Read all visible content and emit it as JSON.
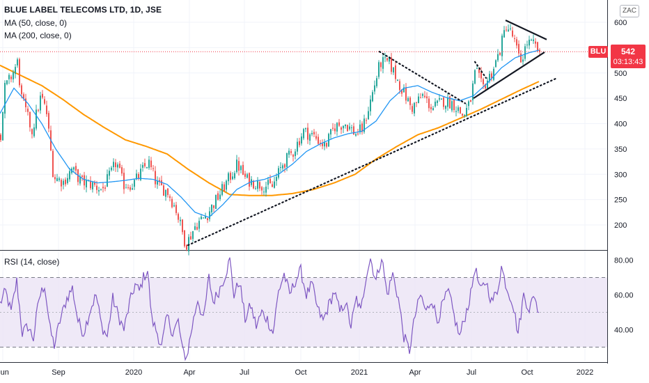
{
  "header": {
    "title": "BLUE LABEL TELECOMS LTD, 1D, JSE",
    "ma50_label": "MA (50, close, 0)",
    "ma200_label": "MA (200, close, 0)",
    "currency": "ZAC"
  },
  "last_price": {
    "symbol": "BLU",
    "value": "542",
    "countdown": "03:13:43"
  },
  "rsi_panel": {
    "label": "RSI (14, close)"
  },
  "colors": {
    "ma50": "#2196f3",
    "ma200": "#ff9800",
    "rsi_line": "#7e57c2",
    "rsi_band": "#ede7f6",
    "up": "#26a69a",
    "down": "#ef5350",
    "price_line": "#f23645",
    "axis_text": "#131722"
  },
  "chart_data": [
    {
      "type": "candlestick",
      "title": "BLUE LABEL TELECOMS LTD, 1D, JSE",
      "x_tick_labels": [
        "Jun",
        "Sep",
        "2020",
        "Apr",
        "Jul",
        "Oct",
        "2021",
        "Apr",
        "Jul",
        "Oct",
        "2022"
      ],
      "y_ticks": [
        200,
        250,
        300,
        350,
        400,
        450,
        500,
        550,
        600
      ],
      "ylim": [
        152,
        633
      ],
      "price_key_points": [
        {
          "x": 0,
          "y": 380
        },
        {
          "x": 6,
          "y": 470
        },
        {
          "x": 14,
          "y": 490
        },
        {
          "x": 24,
          "y": 520
        },
        {
          "x": 30,
          "y": 450
        },
        {
          "x": 45,
          "y": 385
        },
        {
          "x": 58,
          "y": 455
        },
        {
          "x": 66,
          "y": 420
        },
        {
          "x": 76,
          "y": 295
        },
        {
          "x": 90,
          "y": 285
        },
        {
          "x": 102,
          "y": 310
        },
        {
          "x": 116,
          "y": 285
        },
        {
          "x": 130,
          "y": 280
        },
        {
          "x": 146,
          "y": 270
        },
        {
          "x": 158,
          "y": 300
        },
        {
          "x": 166,
          "y": 325
        },
        {
          "x": 176,
          "y": 280
        },
        {
          "x": 190,
          "y": 280
        },
        {
          "x": 200,
          "y": 300
        },
        {
          "x": 212,
          "y": 325
        },
        {
          "x": 224,
          "y": 280
        },
        {
          "x": 240,
          "y": 265
        },
        {
          "x": 252,
          "y": 230
        },
        {
          "x": 266,
          "y": 160
        },
        {
          "x": 280,
          "y": 200
        },
        {
          "x": 296,
          "y": 220
        },
        {
          "x": 312,
          "y": 255
        },
        {
          "x": 325,
          "y": 285
        },
        {
          "x": 340,
          "y": 320
        },
        {
          "x": 352,
          "y": 290
        },
        {
          "x": 372,
          "y": 280
        },
        {
          "x": 390,
          "y": 275
        },
        {
          "x": 405,
          "y": 320
        },
        {
          "x": 420,
          "y": 345
        },
        {
          "x": 435,
          "y": 385
        },
        {
          "x": 450,
          "y": 375
        },
        {
          "x": 466,
          "y": 355
        },
        {
          "x": 480,
          "y": 395
        },
        {
          "x": 495,
          "y": 400
        },
        {
          "x": 510,
          "y": 380
        },
        {
          "x": 520,
          "y": 390
        },
        {
          "x": 532,
          "y": 450
        },
        {
          "x": 545,
          "y": 520
        },
        {
          "x": 558,
          "y": 520
        },
        {
          "x": 572,
          "y": 480
        },
        {
          "x": 590,
          "y": 430
        },
        {
          "x": 606,
          "y": 455
        },
        {
          "x": 620,
          "y": 430
        },
        {
          "x": 636,
          "y": 445
        },
        {
          "x": 650,
          "y": 440
        },
        {
          "x": 664,
          "y": 415
        },
        {
          "x": 674,
          "y": 440
        },
        {
          "x": 682,
          "y": 505
        },
        {
          "x": 692,
          "y": 470
        },
        {
          "x": 705,
          "y": 500
        },
        {
          "x": 716,
          "y": 540
        },
        {
          "x": 726,
          "y": 595
        },
        {
          "x": 736,
          "y": 570
        },
        {
          "x": 746,
          "y": 520
        },
        {
          "x": 756,
          "y": 560
        },
        {
          "x": 766,
          "y": 555
        },
        {
          "x": 774,
          "y": 542
        }
      ],
      "ma50_key_points": [
        {
          "x": 0,
          "y": 420
        },
        {
          "x": 20,
          "y": 470
        },
        {
          "x": 40,
          "y": 440
        },
        {
          "x": 60,
          "y": 400
        },
        {
          "x": 80,
          "y": 350
        },
        {
          "x": 100,
          "y": 310
        },
        {
          "x": 120,
          "y": 290
        },
        {
          "x": 140,
          "y": 283
        },
        {
          "x": 160,
          "y": 285
        },
        {
          "x": 180,
          "y": 288
        },
        {
          "x": 200,
          "y": 292
        },
        {
          "x": 220,
          "y": 290
        },
        {
          "x": 240,
          "y": 280
        },
        {
          "x": 260,
          "y": 255
        },
        {
          "x": 280,
          "y": 225
        },
        {
          "x": 300,
          "y": 215
        },
        {
          "x": 320,
          "y": 240
        },
        {
          "x": 340,
          "y": 270
        },
        {
          "x": 360,
          "y": 285
        },
        {
          "x": 380,
          "y": 290
        },
        {
          "x": 400,
          "y": 300
        },
        {
          "x": 420,
          "y": 320
        },
        {
          "x": 440,
          "y": 345
        },
        {
          "x": 460,
          "y": 360
        },
        {
          "x": 480,
          "y": 372
        },
        {
          "x": 500,
          "y": 380
        },
        {
          "x": 520,
          "y": 385
        },
        {
          "x": 540,
          "y": 405
        },
        {
          "x": 560,
          "y": 445
        },
        {
          "x": 580,
          "y": 470
        },
        {
          "x": 600,
          "y": 475
        },
        {
          "x": 620,
          "y": 462
        },
        {
          "x": 640,
          "y": 452
        },
        {
          "x": 660,
          "y": 445
        },
        {
          "x": 680,
          "y": 455
        },
        {
          "x": 700,
          "y": 480
        },
        {
          "x": 720,
          "y": 510
        },
        {
          "x": 740,
          "y": 530
        },
        {
          "x": 760,
          "y": 540
        },
        {
          "x": 774,
          "y": 545
        }
      ],
      "ma200_key_points": [
        {
          "x": 0,
          "y": 515
        },
        {
          "x": 30,
          "y": 495
        },
        {
          "x": 60,
          "y": 475
        },
        {
          "x": 90,
          "y": 448
        },
        {
          "x": 120,
          "y": 418
        },
        {
          "x": 150,
          "y": 392
        },
        {
          "x": 180,
          "y": 368
        },
        {
          "x": 210,
          "y": 355
        },
        {
          "x": 240,
          "y": 340
        },
        {
          "x": 270,
          "y": 310
        },
        {
          "x": 300,
          "y": 283
        },
        {
          "x": 330,
          "y": 260
        },
        {
          "x": 360,
          "y": 258
        },
        {
          "x": 390,
          "y": 258
        },
        {
          "x": 420,
          "y": 262
        },
        {
          "x": 450,
          "y": 270
        },
        {
          "x": 480,
          "y": 283
        },
        {
          "x": 510,
          "y": 300
        },
        {
          "x": 540,
          "y": 330
        },
        {
          "x": 570,
          "y": 355
        },
        {
          "x": 600,
          "y": 378
        },
        {
          "x": 630,
          "y": 392
        },
        {
          "x": 660,
          "y": 410
        },
        {
          "x": 690,
          "y": 428
        },
        {
          "x": 720,
          "y": 448
        },
        {
          "x": 750,
          "y": 468
        },
        {
          "x": 774,
          "y": 483
        }
      ],
      "last_price": 542,
      "drawings": [
        {
          "kind": "dotted-trend",
          "from": {
            "x": 270,
            "y": 160
          },
          "to": {
            "x": 800,
            "y": 490
          }
        },
        {
          "kind": "dotted-trend",
          "from": {
            "x": 545,
            "y": 542
          },
          "to": {
            "x": 668,
            "y": 440
          }
        },
        {
          "kind": "dotted-trend",
          "from": {
            "x": 682,
            "y": 522
          },
          "to": {
            "x": 698,
            "y": 490
          }
        },
        {
          "kind": "solid-trend",
          "from": {
            "x": 680,
            "y": 450
          },
          "to": {
            "x": 782,
            "y": 541
          }
        },
        {
          "kind": "solid-trend",
          "from": {
            "x": 726,
            "y": 604
          },
          "to": {
            "x": 785,
            "y": 566
          }
        }
      ]
    },
    {
      "type": "line",
      "title": "RSI (14, close)",
      "y_ticks": [
        "40.00",
        "60.00",
        "80.00"
      ],
      "ylim": [
        20,
        84
      ],
      "band": [
        30,
        70
      ],
      "midline": 50,
      "rsi_key_points": [
        {
          "x": 0,
          "y": 55
        },
        {
          "x": 8,
          "y": 62
        },
        {
          "x": 16,
          "y": 50
        },
        {
          "x": 24,
          "y": 68
        },
        {
          "x": 32,
          "y": 38
        },
        {
          "x": 40,
          "y": 42
        },
        {
          "x": 48,
          "y": 35
        },
        {
          "x": 56,
          "y": 58
        },
        {
          "x": 64,
          "y": 66
        },
        {
          "x": 72,
          "y": 40
        },
        {
          "x": 78,
          "y": 31
        },
        {
          "x": 86,
          "y": 45
        },
        {
          "x": 96,
          "y": 58
        },
        {
          "x": 104,
          "y": 64
        },
        {
          "x": 112,
          "y": 45
        },
        {
          "x": 120,
          "y": 38
        },
        {
          "x": 130,
          "y": 52
        },
        {
          "x": 138,
          "y": 60
        },
        {
          "x": 146,
          "y": 42
        },
        {
          "x": 154,
          "y": 36
        },
        {
          "x": 162,
          "y": 58
        },
        {
          "x": 170,
          "y": 48
        },
        {
          "x": 178,
          "y": 40
        },
        {
          "x": 186,
          "y": 55
        },
        {
          "x": 194,
          "y": 66
        },
        {
          "x": 200,
          "y": 62
        },
        {
          "x": 206,
          "y": 70
        },
        {
          "x": 212,
          "y": 74
        },
        {
          "x": 218,
          "y": 46
        },
        {
          "x": 226,
          "y": 38
        },
        {
          "x": 232,
          "y": 30
        },
        {
          "x": 240,
          "y": 48
        },
        {
          "x": 248,
          "y": 38
        },
        {
          "x": 256,
          "y": 45
        },
        {
          "x": 262,
          "y": 28
        },
        {
          "x": 268,
          "y": 24
        },
        {
          "x": 276,
          "y": 42
        },
        {
          "x": 284,
          "y": 58
        },
        {
          "x": 292,
          "y": 45
        },
        {
          "x": 300,
          "y": 70
        },
        {
          "x": 306,
          "y": 56
        },
        {
          "x": 314,
          "y": 62
        },
        {
          "x": 322,
          "y": 70
        },
        {
          "x": 330,
          "y": 80
        },
        {
          "x": 336,
          "y": 60
        },
        {
          "x": 344,
          "y": 68
        },
        {
          "x": 352,
          "y": 46
        },
        {
          "x": 360,
          "y": 54
        },
        {
          "x": 368,
          "y": 42
        },
        {
          "x": 376,
          "y": 50
        },
        {
          "x": 384,
          "y": 46
        },
        {
          "x": 392,
          "y": 38
        },
        {
          "x": 400,
          "y": 62
        },
        {
          "x": 408,
          "y": 72
        },
        {
          "x": 416,
          "y": 60
        },
        {
          "x": 424,
          "y": 68
        },
        {
          "x": 432,
          "y": 74
        },
        {
          "x": 440,
          "y": 60
        },
        {
          "x": 448,
          "y": 66
        },
        {
          "x": 456,
          "y": 52
        },
        {
          "x": 464,
          "y": 45
        },
        {
          "x": 472,
          "y": 54
        },
        {
          "x": 480,
          "y": 62
        },
        {
          "x": 488,
          "y": 50
        },
        {
          "x": 496,
          "y": 56
        },
        {
          "x": 504,
          "y": 42
        },
        {
          "x": 512,
          "y": 58
        },
        {
          "x": 518,
          "y": 50
        },
        {
          "x": 526,
          "y": 72
        },
        {
          "x": 532,
          "y": 81
        },
        {
          "x": 540,
          "y": 68
        },
        {
          "x": 548,
          "y": 82
        },
        {
          "x": 556,
          "y": 60
        },
        {
          "x": 564,
          "y": 72
        },
        {
          "x": 572,
          "y": 58
        },
        {
          "x": 580,
          "y": 36
        },
        {
          "x": 588,
          "y": 28
        },
        {
          "x": 596,
          "y": 48
        },
        {
          "x": 604,
          "y": 60
        },
        {
          "x": 612,
          "y": 50
        },
        {
          "x": 620,
          "y": 58
        },
        {
          "x": 628,
          "y": 45
        },
        {
          "x": 636,
          "y": 55
        },
        {
          "x": 644,
          "y": 62
        },
        {
          "x": 652,
          "y": 48
        },
        {
          "x": 660,
          "y": 36
        },
        {
          "x": 668,
          "y": 48
        },
        {
          "x": 676,
          "y": 60
        },
        {
          "x": 682,
          "y": 76
        },
        {
          "x": 690,
          "y": 62
        },
        {
          "x": 698,
          "y": 68
        },
        {
          "x": 706,
          "y": 56
        },
        {
          "x": 714,
          "y": 62
        },
        {
          "x": 720,
          "y": 76
        },
        {
          "x": 728,
          "y": 64
        },
        {
          "x": 736,
          "y": 56
        },
        {
          "x": 744,
          "y": 38
        },
        {
          "x": 752,
          "y": 60
        },
        {
          "x": 760,
          "y": 52
        },
        {
          "x": 768,
          "y": 60
        },
        {
          "x": 774,
          "y": 48
        }
      ]
    }
  ]
}
